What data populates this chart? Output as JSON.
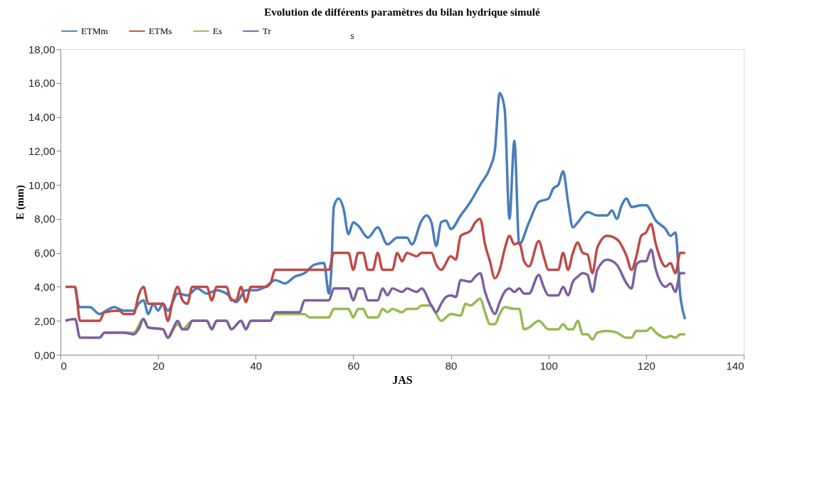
{
  "chart_data": {
    "type": "line",
    "title": "Evolution de différents  paramètres du bilan hydrique simulé",
    "xlabel": "JAS",
    "ylabel": "E (mm)",
    "annotations": [
      "s"
    ],
    "xlim": [
      0,
      140
    ],
    "xticks": [
      0,
      20,
      40,
      60,
      80,
      100,
      120,
      140
    ],
    "ylim": [
      0,
      18
    ],
    "yticks": [
      {
        "value": 0,
        "label": "0,00"
      },
      {
        "value": 2,
        "label": "2,00"
      },
      {
        "value": 4,
        "label": "4,00"
      },
      {
        "value": 6,
        "label": "6,00"
      },
      {
        "value": 8,
        "label": "8,00"
      },
      {
        "value": 10,
        "label": "10,00"
      },
      {
        "value": 12,
        "label": "12,00"
      },
      {
        "value": 14,
        "label": "14,00"
      },
      {
        "value": 16,
        "label": "16,00"
      },
      {
        "value": 18,
        "label": "18,00"
      }
    ],
    "grid": false,
    "legend": "top",
    "marker": "none",
    "line_style": "solid",
    "series": [
      {
        "name": "ETMm",
        "color": "#4a7ebb",
        "x": [
          3,
          4,
          6,
          8,
          10,
          11,
          13,
          15,
          16,
          17,
          18,
          19,
          20,
          21,
          22,
          24,
          26,
          28,
          30,
          32,
          34,
          36,
          38,
          40,
          42,
          44,
          46,
          48,
          50,
          52,
          54,
          55,
          55.5,
          56,
          57,
          58,
          59,
          60,
          61,
          63,
          65,
          67,
          69,
          71,
          72,
          74,
          75,
          76,
          77,
          78,
          79,
          80,
          82,
          84,
          86,
          88,
          89,
          90,
          91,
          92,
          93,
          94,
          96,
          98,
          100,
          101,
          102,
          103,
          104,
          105,
          106,
          108,
          110,
          112,
          113,
          114,
          115,
          116,
          117,
          119,
          120,
          122,
          124,
          125,
          126,
          127,
          128
        ],
        "values": [
          4.0,
          2.8,
          2.8,
          2.4,
          2.7,
          2.8,
          2.6,
          2.6,
          3.0,
          3.2,
          2.4,
          3.0,
          2.6,
          3.0,
          2.6,
          3.6,
          3.5,
          3.9,
          3.6,
          3.8,
          3.6,
          3.1,
          3.8,
          3.8,
          4.0,
          4.4,
          4.2,
          4.6,
          4.8,
          5.3,
          5.4,
          3.6,
          5.0,
          8.7,
          9.2,
          8.6,
          7.1,
          7.8,
          7.6,
          6.9,
          7.5,
          6.5,
          6.9,
          6.9,
          6.5,
          7.9,
          8.2,
          7.8,
          6.4,
          7.8,
          7.9,
          7.4,
          8.2,
          9.0,
          10.0,
          11.0,
          12.0,
          15.4,
          14.5,
          8.0,
          12.6,
          6.5,
          7.8,
          9.0,
          9.2,
          9.8,
          10.0,
          10.8,
          9.0,
          7.5,
          7.8,
          8.4,
          8.2,
          8.2,
          8.5,
          8.0,
          8.8,
          9.2,
          8.7,
          8.8,
          8.8,
          7.9,
          7.4,
          7.0,
          7.2,
          3.5,
          2.1
        ]
      },
      {
        "name": "ETMs",
        "color": "#be4b48",
        "x": [
          1,
          3,
          4,
          8,
          9,
          12,
          13,
          15,
          16,
          17,
          18,
          21,
          22,
          23,
          24,
          25,
          26,
          27,
          30,
          31,
          32,
          34,
          35,
          36,
          37,
          38,
          39,
          42,
          43,
          44,
          55,
          56,
          59,
          60,
          61,
          62,
          63,
          64,
          65,
          66,
          68,
          69,
          70,
          71,
          73,
          74,
          76,
          77,
          78,
          80,
          81,
          82,
          84,
          85,
          86,
          87,
          88,
          89,
          90,
          91,
          92,
          93,
          94,
          95,
          96,
          98,
          99,
          100,
          102,
          103,
          104,
          105,
          106,
          107,
          108,
          109,
          110,
          112,
          114,
          116,
          117,
          118,
          119,
          120,
          121,
          122,
          124,
          125,
          126,
          127,
          128
        ],
        "values": [
          4.0,
          4.0,
          2.0,
          2.0,
          2.5,
          2.6,
          2.4,
          2.4,
          3.5,
          4.0,
          3.0,
          3.0,
          2.0,
          3.2,
          4.0,
          3.2,
          3.0,
          4.0,
          4.0,
          3.2,
          4.0,
          4.0,
          3.2,
          3.2,
          4.0,
          3.1,
          4.0,
          4.0,
          4.2,
          5.0,
          5.0,
          6.0,
          6.0,
          5.0,
          6.0,
          6.0,
          5.0,
          5.0,
          6.0,
          5.0,
          5.0,
          6.0,
          5.5,
          6.0,
          5.8,
          6.0,
          6.0,
          5.3,
          5.0,
          5.8,
          5.6,
          7.0,
          7.3,
          7.8,
          8.0,
          6.5,
          5.5,
          4.5,
          5.0,
          6.2,
          7.0,
          6.5,
          6.6,
          5.5,
          5.2,
          6.7,
          5.8,
          5.0,
          5.0,
          6.0,
          5.0,
          6.0,
          6.6,
          6.0,
          5.9,
          4.8,
          6.3,
          7.0,
          6.8,
          5.8,
          5.0,
          5.8,
          7.0,
          7.2,
          7.7,
          6.5,
          5.2,
          5.4,
          4.8,
          6.0,
          6.0
        ]
      },
      {
        "name": "Es",
        "color": "#98b954",
        "x": [
          9,
          15,
          17,
          18,
          21,
          22,
          24,
          25,
          27,
          30,
          31,
          32,
          34,
          35,
          37,
          38,
          39,
          43,
          44,
          50,
          51,
          55,
          56,
          59,
          60,
          61,
          62,
          63,
          65,
          66,
          67,
          68,
          70,
          71,
          73,
          74,
          76,
          77,
          78,
          80,
          82,
          83,
          84,
          86,
          87,
          88,
          89,
          90,
          91,
          93,
          94,
          95,
          96,
          98,
          100,
          102,
          103,
          104,
          105,
          106,
          107,
          108,
          109,
          110,
          112,
          114,
          116,
          117,
          118,
          120,
          121,
          122,
          124,
          125,
          126,
          127,
          128
        ],
        "values": [
          1.3,
          1.3,
          2.1,
          1.6,
          1.5,
          1.0,
          1.8,
          1.5,
          2.0,
          2.0,
          1.5,
          2.0,
          2.0,
          1.5,
          2.0,
          1.5,
          2.0,
          2.0,
          2.4,
          2.4,
          2.2,
          2.2,
          2.7,
          2.7,
          2.2,
          2.7,
          2.7,
          2.2,
          2.2,
          2.7,
          2.5,
          2.7,
          2.5,
          2.7,
          2.7,
          2.9,
          2.9,
          2.4,
          2.0,
          2.4,
          2.3,
          3.0,
          2.9,
          3.3,
          2.5,
          1.8,
          1.8,
          2.4,
          2.8,
          2.7,
          2.7,
          1.5,
          1.6,
          2.0,
          1.5,
          1.5,
          1.8,
          1.5,
          1.5,
          2.0,
          1.2,
          1.2,
          0.9,
          1.3,
          1.4,
          1.3,
          1.0,
          1.0,
          1.4,
          1.4,
          1.6,
          1.3,
          1.0,
          1.1,
          1.0,
          1.2,
          1.2
        ]
      },
      {
        "name": "Tr",
        "color": "#7d60a0",
        "x": [
          1,
          3,
          4,
          8,
          9,
          13,
          15,
          16,
          17,
          18,
          21,
          22,
          23,
          24,
          25,
          26,
          27,
          30,
          31,
          32,
          34,
          35,
          37,
          38,
          39,
          43,
          44,
          49,
          50,
          55,
          56,
          59,
          60,
          61,
          62,
          63,
          65,
          66,
          67,
          68,
          70,
          71,
          73,
          74,
          76,
          77,
          78,
          79,
          80,
          81,
          82,
          84,
          85,
          86,
          87,
          88,
          89,
          90,
          91,
          92,
          93,
          94,
          95,
          96,
          98,
          99,
          100,
          102,
          103,
          104,
          105,
          106,
          107,
          108,
          109,
          110,
          112,
          114,
          116,
          117,
          118,
          119,
          120,
          121,
          122,
          124,
          125,
          126,
          127,
          128
        ],
        "values": [
          2.0,
          2.1,
          1.0,
          1.0,
          1.3,
          1.3,
          1.2,
          1.5,
          2.1,
          1.6,
          1.5,
          1.0,
          1.5,
          2.0,
          1.5,
          1.5,
          2.0,
          2.0,
          1.5,
          2.0,
          2.0,
          1.5,
          2.0,
          1.5,
          2.0,
          2.0,
          2.5,
          2.5,
          3.2,
          3.2,
          3.9,
          3.9,
          3.2,
          3.9,
          3.9,
          3.2,
          3.2,
          3.9,
          3.5,
          3.9,
          3.7,
          3.9,
          3.7,
          3.9,
          2.9,
          2.5,
          3.0,
          3.4,
          3.5,
          3.4,
          4.4,
          4.3,
          4.6,
          4.8,
          3.7,
          2.9,
          2.4,
          3.1,
          3.7,
          3.9,
          3.7,
          3.9,
          3.6,
          3.6,
          4.7,
          4.0,
          3.5,
          3.5,
          4.0,
          3.5,
          4.3,
          4.6,
          4.8,
          4.7,
          3.7,
          5.0,
          5.6,
          5.3,
          4.2,
          3.9,
          5.3,
          5.5,
          5.5,
          6.2,
          5.0,
          4.0,
          4.2,
          3.7,
          4.8,
          4.8
        ]
      }
    ]
  }
}
